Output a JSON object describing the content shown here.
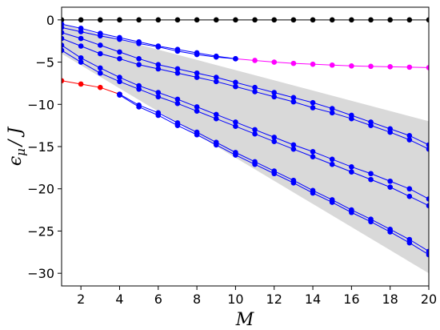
{
  "chart_data": {
    "type": "line",
    "title": "",
    "xlabel": "M",
    "ylabel": "ϵ",
    "ylabel_sub": "μ",
    "ylabel_tail": "/ J",
    "xlim": [
      1,
      20
    ],
    "ylim": [
      -31.5,
      1.5
    ],
    "x_ticks": [
      2,
      4,
      6,
      8,
      10,
      12,
      14,
      16,
      18,
      20
    ],
    "x_tick_labels": [
      "2",
      "4",
      "6",
      "8",
      "10",
      "12",
      "14",
      "16",
      "18",
      "20"
    ],
    "y_ticks": [
      0,
      -5,
      -10,
      -15,
      -20,
      -25,
      -30
    ],
    "y_tick_labels": [
      "0",
      "−5",
      "−10",
      "−15",
      "−20",
      "−25",
      "−30"
    ],
    "grid": false,
    "legend": "none",
    "colors": {
      "black": "#000000",
      "magenta": "#ff00ff",
      "red": "#ff0000",
      "blue": "#0000ff",
      "band": "#d9d9d9"
    },
    "band": {
      "x": [
        1,
        20
      ],
      "upper": [
        -0.5,
        -12.0
      ],
      "lower": [
        -4.0,
        -30.0
      ]
    },
    "series": [
      {
        "color": "black",
        "x": [
          1,
          2,
          3,
          4,
          5,
          6,
          7,
          8,
          9,
          10,
          11,
          12,
          13,
          14,
          15,
          16,
          17,
          18,
          19,
          20
        ],
        "y": [
          0,
          0,
          0,
          0,
          0,
          0,
          0,
          0,
          0,
          0,
          0,
          0,
          0,
          0,
          0,
          0,
          0,
          0,
          0,
          0
        ]
      },
      {
        "color": "red",
        "x": [
          1,
          2,
          3,
          4
        ],
        "y": [
          -7.2,
          -7.6,
          -8.0,
          -8.8
        ]
      },
      {
        "color": "magenta",
        "x": [
          10,
          11,
          12,
          13,
          14,
          15,
          16,
          17,
          18,
          19,
          20
        ],
        "y": [
          -4.6,
          -4.8,
          -5.0,
          -5.15,
          -5.25,
          -5.35,
          -5.45,
          -5.5,
          -5.55,
          -5.6,
          -5.65
        ]
      },
      {
        "color": "blue",
        "x": [
          1,
          2,
          3,
          4,
          5,
          6,
          7,
          8,
          9,
          10
        ],
        "y": [
          -0.5,
          -1.0,
          -1.6,
          -2.1,
          -2.6,
          -3.1,
          -3.5,
          -3.9,
          -4.3,
          -4.6
        ]
      },
      {
        "color": "blue",
        "x": [
          1,
          2,
          3,
          4,
          5,
          6,
          7,
          8,
          9,
          10
        ],
        "y": [
          -0.9,
          -1.4,
          -1.9,
          -2.3,
          -2.8,
          -3.2,
          -3.7,
          -4.1,
          -4.4,
          -4.6
        ]
      },
      {
        "color": "blue",
        "x": [
          1,
          2,
          3,
          4,
          5,
          6,
          7,
          8,
          9,
          10,
          11,
          12,
          13,
          14,
          15,
          16,
          17,
          18,
          19,
          20
        ],
        "y": [
          -1.5,
          -2.2,
          -3.0,
          -3.8,
          -4.6,
          -5.3,
          -5.8,
          -6.3,
          -6.8,
          -7.4,
          -8.0,
          -8.6,
          -9.2,
          -9.8,
          -10.5,
          -11.3,
          -12.1,
          -12.9,
          -13.7,
          -14.8
        ]
      },
      {
        "color": "blue",
        "x": [
          1,
          2,
          3,
          4,
          5,
          6,
          7,
          8,
          9,
          10,
          11,
          12,
          13,
          14,
          15,
          16,
          17,
          18,
          19,
          20
        ],
        "y": [
          -2.2,
          -3.1,
          -4.0,
          -4.6,
          -5.3,
          -5.8,
          -6.3,
          -6.8,
          -7.3,
          -7.9,
          -8.5,
          -9.1,
          -9.7,
          -10.4,
          -11.0,
          -11.7,
          -12.5,
          -13.3,
          -14.2,
          -15.3
        ]
      },
      {
        "color": "blue",
        "x": [
          1,
          2,
          3,
          4,
          5,
          6,
          7,
          8,
          9,
          10,
          11,
          12,
          13,
          14,
          15,
          16,
          17,
          18,
          19,
          20
        ],
        "y": [
          -3.0,
          -4.5,
          -5.7,
          -6.8,
          -7.8,
          -8.6,
          -9.4,
          -10.3,
          -11.2,
          -12.1,
          -13.0,
          -13.9,
          -14.8,
          -15.6,
          -16.5,
          -17.4,
          -18.2,
          -19.1,
          -20.0,
          -21.2
        ]
      },
      {
        "color": "blue",
        "x": [
          1,
          2,
          3,
          4,
          5,
          6,
          7,
          8,
          9,
          10,
          11,
          12,
          13,
          14,
          15,
          16,
          17,
          18,
          19,
          20
        ],
        "y": [
          -3.6,
          -5.0,
          -6.3,
          -7.3,
          -8.2,
          -9.1,
          -9.9,
          -10.8,
          -11.7,
          -12.6,
          -13.5,
          -14.4,
          -15.3,
          -16.2,
          -17.1,
          -18.0,
          -18.9,
          -19.8,
          -20.9,
          -22.0
        ]
      },
      {
        "color": "blue",
        "x": [
          4,
          5,
          6,
          7,
          8,
          9,
          10,
          11,
          12,
          13,
          14,
          15,
          16,
          17,
          18,
          19,
          20
        ],
        "y": [
          -8.8,
          -10.1,
          -11.0,
          -12.2,
          -13.3,
          -14.5,
          -15.7,
          -16.8,
          -17.9,
          -19.0,
          -20.2,
          -21.3,
          -22.5,
          -23.6,
          -24.8,
          -26.0,
          -27.4
        ]
      },
      {
        "color": "blue",
        "x": [
          4,
          5,
          6,
          7,
          8,
          9,
          10,
          11,
          12,
          13,
          14,
          15,
          16,
          17,
          18,
          19,
          20
        ],
        "y": [
          -8.9,
          -10.3,
          -11.3,
          -12.5,
          -13.6,
          -14.8,
          -16.0,
          -17.1,
          -18.2,
          -19.3,
          -20.5,
          -21.6,
          -22.8,
          -23.9,
          -25.1,
          -26.4,
          -27.8
        ]
      }
    ]
  }
}
